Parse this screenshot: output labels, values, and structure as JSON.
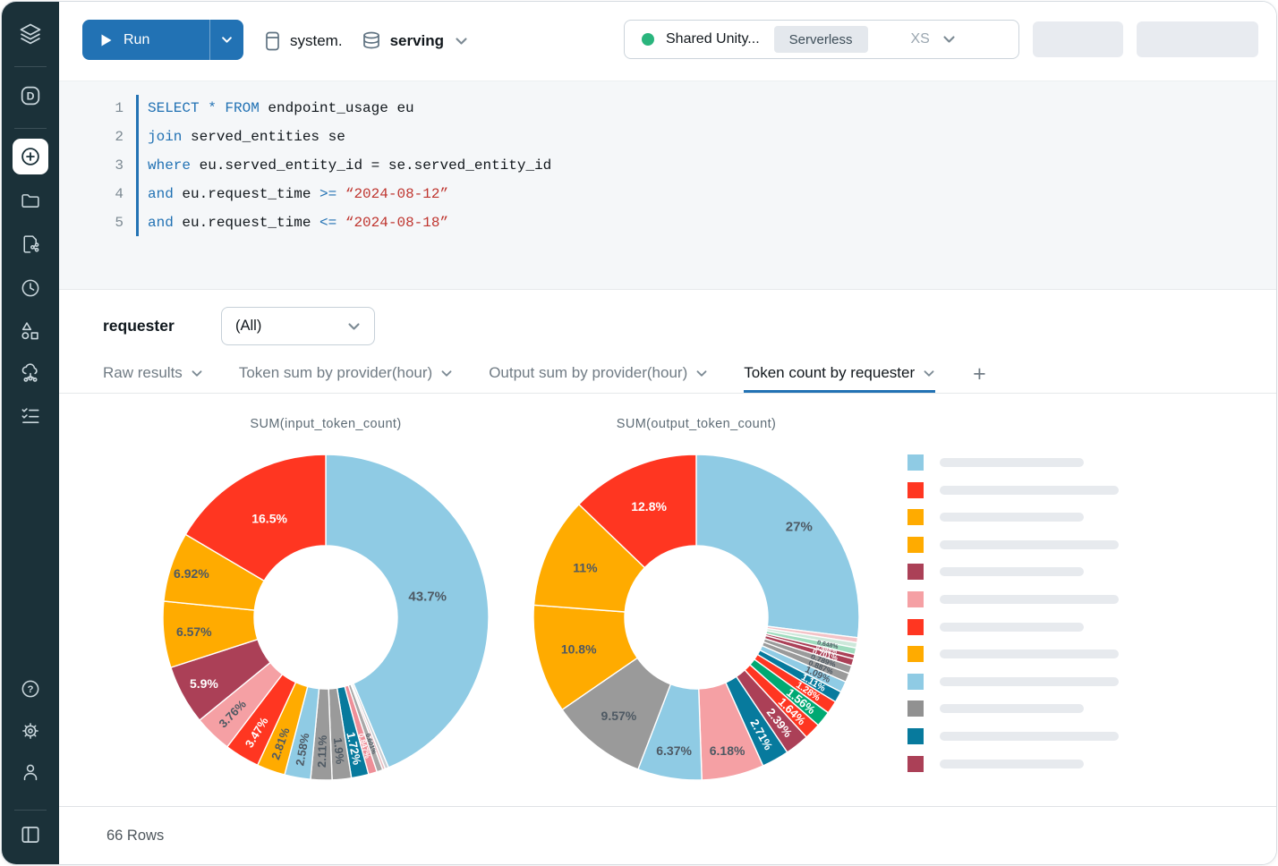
{
  "sidebar": {
    "workspace_d_glyph": "D",
    "help_glyph": "?",
    "items": [
      "databricks-logo",
      "workspace-d",
      "new-query",
      "folder",
      "lineage",
      "history",
      "ml-shapes",
      "serving-cloud",
      "checklist",
      "help",
      "settings",
      "account",
      "panel-toggle"
    ]
  },
  "toolbar": {
    "run_label": "Run",
    "catalog_label": "system.",
    "schema_label": "serving",
    "warehouse": {
      "name": "Shared Unity...",
      "badge": "Serverless",
      "size": "XS"
    }
  },
  "editor": {
    "lines": [
      {
        "num": "1",
        "tokens": [
          {
            "c": "kw",
            "t": "SELECT * FROM"
          },
          {
            "c": "pl",
            "t": " endpoint_usage eu"
          }
        ]
      },
      {
        "num": "2",
        "tokens": [
          {
            "c": "kw",
            "t": "join"
          },
          {
            "c": "pl",
            "t": " served_entities se"
          }
        ]
      },
      {
        "num": "3",
        "tokens": [
          {
            "c": "kw",
            "t": "where"
          },
          {
            "c": "pl",
            "t": " eu.served_entity_id = se.served_entity_id"
          }
        ]
      },
      {
        "num": "4",
        "tokens": [
          {
            "c": "kw",
            "t": "and"
          },
          {
            "c": "pl",
            "t": " eu.request_time "
          },
          {
            "c": "kw",
            "t": ">="
          },
          {
            "c": "st",
            "t": " “2024-08-12”"
          }
        ]
      },
      {
        "num": "5",
        "tokens": [
          {
            "c": "kw",
            "t": "and"
          },
          {
            "c": "pl",
            "t": " eu.request_time "
          },
          {
            "c": "kw",
            "t": "<="
          },
          {
            "c": "st",
            "t": " “2024-08-18”"
          }
        ]
      }
    ]
  },
  "results": {
    "filter_label": "requester",
    "filter_value": "(All)",
    "tabs": [
      {
        "label": "Raw results",
        "active": false
      },
      {
        "label": "Token sum by provider(hour)",
        "active": false
      },
      {
        "label": "Output sum by provider(hour)",
        "active": false
      },
      {
        "label": "Token count by requester",
        "active": true
      }
    ],
    "add_tab_label": "+"
  },
  "chart_data": [
    {
      "type": "pie",
      "subtype": "donut",
      "title": "SUM(input_token_count)",
      "unit": "percent",
      "slices": [
        {
          "label": "43.7%",
          "value": 43.7,
          "color": "#8fcbe4",
          "text": "dark",
          "lr": 116
        },
        {
          "label": "",
          "value": 0.35,
          "color": "#c9ced3"
        },
        {
          "label": "",
          "value": 0.262,
          "color": "#e8b9be"
        },
        {
          "label": "0.601%",
          "value": 0.601,
          "color": "#a8a8a8",
          "text": "dark"
        },
        {
          "label": "0.847%",
          "value": 0.847,
          "color": "#ee8f98",
          "text": "white"
        },
        {
          "label": "1.72%",
          "value": 1.72,
          "color": "#077a9d",
          "text": "white"
        },
        {
          "label": "1.9%",
          "value": 1.9,
          "color": "#9a9a9a",
          "text": "dark"
        },
        {
          "label": "2.11%",
          "value": 2.11,
          "color": "#9a9a9a",
          "text": "dark"
        },
        {
          "label": "2.58%",
          "value": 2.58,
          "color": "#8fcbe4",
          "text": "dark"
        },
        {
          "label": "2.81%",
          "value": 2.81,
          "color": "#ffab00",
          "text": "dark"
        },
        {
          "label": "3.47%",
          "value": 3.47,
          "color": "#ff3621",
          "text": "white"
        },
        {
          "label": "3.76%",
          "value": 3.76,
          "color": "#f5a0a4",
          "text": "dark"
        },
        {
          "label": "5.9%",
          "value": 5.9,
          "color": "#ab4057",
          "text": "white",
          "lr": 155
        },
        {
          "label": "6.57%",
          "value": 6.57,
          "color": "#ffab00",
          "text": "dark",
          "lr": 148
        },
        {
          "label": "6.92%",
          "value": 6.92,
          "color": "#ffab00",
          "text": "dark",
          "lr": 158
        },
        {
          "label": "16.5%",
          "value": 16.5,
          "color": "#ff3621",
          "text": "white",
          "lr": 127
        }
      ]
    },
    {
      "type": "pie",
      "subtype": "donut",
      "title": "SUM(output_token_count)",
      "unit": "percent",
      "slices": [
        {
          "label": "27%",
          "value": 27,
          "color": "#8fcbe4",
          "text": "dark",
          "lr": 153
        },
        {
          "label": "",
          "value": 0.5,
          "color": "#f3c3c7"
        },
        {
          "label": "",
          "value": 0.522,
          "color": "#cde8da"
        },
        {
          "label": "0.648%",
          "value": 0.648,
          "color": "#9fdcbe",
          "text": "dark"
        },
        {
          "label": "0.448%",
          "value": 0.448,
          "color": "#ab4057",
          "text": "white"
        },
        {
          "label": "0.701%",
          "value": 0.701,
          "color": "#ab4057",
          "text": "white"
        },
        {
          "label": "0.789%",
          "value": 0.789,
          "color": "#9a9a9a",
          "text": "dark"
        },
        {
          "label": "0.887%",
          "value": 0.887,
          "color": "#9a9a9a",
          "text": "dark"
        },
        {
          "label": "1.09%",
          "value": 1.09,
          "color": "#8fcbe4",
          "text": "dark"
        },
        {
          "label": "1.11%",
          "value": 1.11,
          "color": "#077a9d",
          "text": "white"
        },
        {
          "label": "1.28%",
          "value": 1.28,
          "color": "#ff3621",
          "text": "white"
        },
        {
          "label": "1.56%",
          "value": 1.56,
          "color": "#00a972",
          "text": "white"
        },
        {
          "label": "1.64%",
          "value": 1.64,
          "color": "#ff3621",
          "text": "white"
        },
        {
          "label": "2.39%",
          "value": 2.39,
          "color": "#ab4057",
          "text": "white"
        },
        {
          "label": "2.71%",
          "value": 2.71,
          "color": "#077a9d",
          "text": "white"
        },
        {
          "label": "6.18%",
          "value": 6.18,
          "color": "#f5a0a4",
          "text": "dark",
          "lr": 153
        },
        {
          "label": "6.37%",
          "value": 6.37,
          "color": "#8fcbe4",
          "text": "dark",
          "lr": 151
        },
        {
          "label": "9.57%",
          "value": 9.57,
          "color": "#9a9a9a",
          "text": "dark",
          "lr": 140
        },
        {
          "label": "10.8%",
          "value": 10.8,
          "color": "#ffab00",
          "text": "dark",
          "lr": 136
        },
        {
          "label": "11%",
          "value": 11,
          "color": "#ffab00",
          "text": "dark",
          "lr": 136
        },
        {
          "label": "12.8%",
          "value": 12.8,
          "color": "#ff3621",
          "text": "white",
          "lr": 135
        }
      ]
    }
  ],
  "legend": {
    "labels_redacted": true,
    "items": [
      {
        "color": "#8fcbe4",
        "size": "short"
      },
      {
        "color": "#ff3621",
        "size": "long"
      },
      {
        "color": "#ffab00",
        "size": "short"
      },
      {
        "color": "#ffab00",
        "size": "long"
      },
      {
        "color": "#ab4057",
        "size": "short"
      },
      {
        "color": "#f5a0a4",
        "size": "long"
      },
      {
        "color": "#ff3621",
        "size": "short"
      },
      {
        "color": "#ffab00",
        "size": "long"
      },
      {
        "color": "#8fcbe4",
        "size": "long"
      },
      {
        "color": "#919191",
        "size": "short"
      },
      {
        "color": "#077a9d",
        "size": "long"
      },
      {
        "color": "#ab4057",
        "size": "short"
      }
    ]
  },
  "footer": {
    "row_count": "66 Rows"
  },
  "colors": {
    "accent_blue": "#2272b4",
    "sidebar_bg": "#1b3139",
    "keyword": "#2272b4",
    "string": "#bf352f",
    "status_green": "#2ab57d",
    "pie_label_dark": "#4e5963",
    "pie_label_light": "#ffffff"
  }
}
